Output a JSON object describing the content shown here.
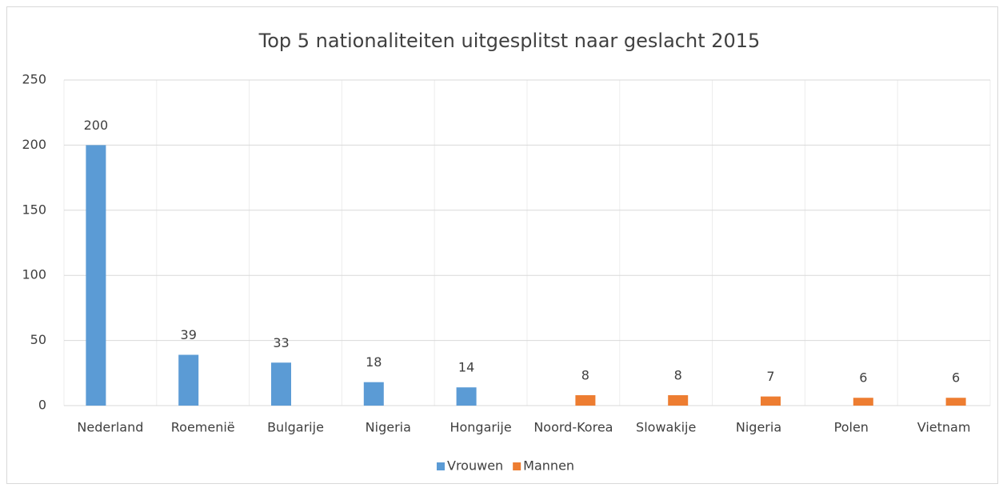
{
  "chart_data": {
    "type": "bar",
    "title": "Top 5 nationaliteiten uitgesplitst naar geslacht 2015",
    "categories": [
      "Nederland",
      "Roemenië",
      "Bulgarije",
      "Nigeria",
      "Hongarije",
      "Noord-Korea",
      "Slowakije",
      "Nigeria",
      "Polen",
      "Vietnam"
    ],
    "series": [
      {
        "name": "Vrouwen",
        "color": "#5b9bd5",
        "values": [
          200,
          39,
          33,
          18,
          14,
          null,
          null,
          null,
          null,
          null
        ]
      },
      {
        "name": "Mannen",
        "color": "#ed7d31",
        "values": [
          null,
          null,
          null,
          null,
          null,
          8,
          8,
          7,
          6,
          6
        ]
      }
    ],
    "ylim": [
      0,
      250
    ],
    "yticks": [
      0,
      50,
      100,
      150,
      200,
      250
    ],
    "grid": true,
    "legend": "bottom"
  }
}
